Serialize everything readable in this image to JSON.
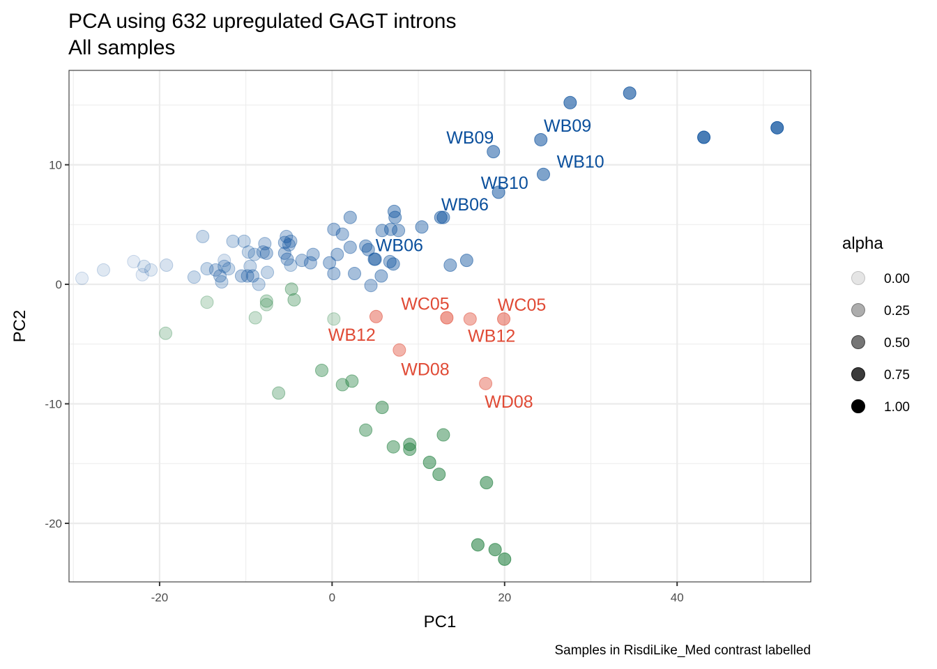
{
  "chart_data": {
    "type": "scatter",
    "title": "PCA using 632 upregulated GAGT introns",
    "subtitle": "All samples",
    "xlabel": "PC1",
    "ylabel": "PC2",
    "caption": "Samples in RisdiLike_Med contrast labelled",
    "xlim": [
      -30.5,
      55.5
    ],
    "ylim": [
      -24.9,
      17.9
    ],
    "x_ticks": [
      -20,
      0,
      20,
      40
    ],
    "y_ticks": [
      -20,
      -10,
      0,
      10
    ],
    "x_tick_labels": [
      "-20",
      "0",
      "20",
      "40"
    ],
    "y_tick_labels": [
      "-20",
      "-10",
      "0",
      "10"
    ],
    "grid": true,
    "legend": {
      "title": "alpha",
      "placement": "right",
      "entries": [
        {
          "label": "0.00",
          "alpha": 0.1
        },
        {
          "label": "0.25",
          "alpha": 0.32
        },
        {
          "label": "0.50",
          "alpha": 0.54
        },
        {
          "label": "0.75",
          "alpha": 0.77
        },
        {
          "label": "1.00",
          "alpha": 1.0
        }
      ]
    },
    "colors": {
      "blue": "#0a4f9c",
      "green": "#1e7d3c",
      "red": "#e04a35"
    },
    "series": [
      {
        "name": "blue",
        "points": [
          {
            "x": -29.0,
            "y": 0.5,
            "a": 0.12
          },
          {
            "x": -26.5,
            "y": 1.2,
            "a": 0.15
          },
          {
            "x": -23.0,
            "y": 1.9,
            "a": 0.12
          },
          {
            "x": -22.0,
            "y": 0.8,
            "a": 0.12
          },
          {
            "x": -21.8,
            "y": 1.5,
            "a": 0.18
          },
          {
            "x": -21.0,
            "y": 1.2,
            "a": 0.15
          },
          {
            "x": -19.2,
            "y": 1.6,
            "a": 0.2
          },
          {
            "x": -15.0,
            "y": 4.0,
            "a": 0.28
          },
          {
            "x": -16.0,
            "y": 0.6,
            "a": 0.28
          },
          {
            "x": -14.5,
            "y": 1.3,
            "a": 0.3
          },
          {
            "x": -13.5,
            "y": 1.2,
            "a": 0.35
          },
          {
            "x": -13.0,
            "y": 0.7,
            "a": 0.35
          },
          {
            "x": -12.8,
            "y": 0.2,
            "a": 0.3
          },
          {
            "x": -12.5,
            "y": 1.5,
            "a": 0.3
          },
          {
            "x": -12.5,
            "y": 2.0,
            "a": 0.2
          },
          {
            "x": -12.0,
            "y": 1.3,
            "a": 0.3
          },
          {
            "x": -11.5,
            "y": 3.6,
            "a": 0.3
          },
          {
            "x": -10.5,
            "y": 0.7,
            "a": 0.38
          },
          {
            "x": -10.2,
            "y": 3.6,
            "a": 0.3
          },
          {
            "x": -9.8,
            "y": 0.7,
            "a": 0.4
          },
          {
            "x": -9.7,
            "y": 2.7,
            "a": 0.3
          },
          {
            "x": -9.5,
            "y": 1.5,
            "a": 0.3
          },
          {
            "x": -9.2,
            "y": 0.7,
            "a": 0.38
          },
          {
            "x": -9.0,
            "y": 2.5,
            "a": 0.3
          },
          {
            "x": -8.5,
            "y": 0.0,
            "a": 0.3
          },
          {
            "x": -8.0,
            "y": 2.7,
            "a": 0.35
          },
          {
            "x": -7.8,
            "y": 3.4,
            "a": 0.35
          },
          {
            "x": -7.6,
            "y": 2.6,
            "a": 0.4
          },
          {
            "x": -7.5,
            "y": 1.0,
            "a": 0.3
          },
          {
            "x": -5.5,
            "y": 3.5,
            "a": 0.4
          },
          {
            "x": -5.5,
            "y": 2.6,
            "a": 0.42
          },
          {
            "x": -5.3,
            "y": 4.0,
            "a": 0.38
          },
          {
            "x": -5.2,
            "y": 2.1,
            "a": 0.4
          },
          {
            "x": -5.0,
            "y": 3.3,
            "a": 0.38
          },
          {
            "x": -4.8,
            "y": 1.6,
            "a": 0.3
          },
          {
            "x": -4.8,
            "y": 3.6,
            "a": 0.4
          },
          {
            "x": -3.5,
            "y": 2.0,
            "a": 0.4
          },
          {
            "x": -2.5,
            "y": 1.8,
            "a": 0.42
          },
          {
            "x": -2.2,
            "y": 2.5,
            "a": 0.42
          },
          {
            "x": -0.3,
            "y": 1.8,
            "a": 0.45
          },
          {
            "x": 0.2,
            "y": 4.6,
            "a": 0.45
          },
          {
            "x": 0.2,
            "y": 0.9,
            "a": 0.45
          },
          {
            "x": 0.6,
            "y": 2.5,
            "a": 0.45
          },
          {
            "x": 1.2,
            "y": 4.2,
            "a": 0.45
          },
          {
            "x": 2.1,
            "y": 5.6,
            "a": 0.5
          },
          {
            "x": 2.1,
            "y": 3.1,
            "a": 0.48
          },
          {
            "x": 2.6,
            "y": 0.9,
            "a": 0.48
          },
          {
            "x": 3.9,
            "y": 3.2,
            "a": 0.5
          },
          {
            "x": 4.2,
            "y": 2.9,
            "a": 0.5
          },
          {
            "x": 4.5,
            "y": -0.1,
            "a": 0.45
          },
          {
            "x": 4.9,
            "y": 2.1,
            "a": 0.55
          },
          {
            "x": 5.0,
            "y": 2.1,
            "a": 0.5
          },
          {
            "x": 5.7,
            "y": 0.7,
            "a": 0.5
          },
          {
            "x": 5.8,
            "y": 4.5,
            "a": 0.5
          },
          {
            "x": 6.7,
            "y": 1.9,
            "a": 0.5
          },
          {
            "x": 6.8,
            "y": 4.6,
            "a": 0.5
          },
          {
            "x": 7.1,
            "y": 1.7,
            "a": 0.55
          },
          {
            "x": 7.2,
            "y": 6.1,
            "a": 0.55
          },
          {
            "x": 7.3,
            "y": 5.6,
            "a": 0.55
          },
          {
            "x": 7.7,
            "y": 4.5,
            "a": 0.5
          },
          {
            "x": 10.4,
            "y": 4.8,
            "a": 0.55
          },
          {
            "x": 12.6,
            "y": 5.6,
            "a": 0.6
          },
          {
            "x": 12.9,
            "y": 5.6,
            "a": 0.6
          },
          {
            "x": 13.7,
            "y": 1.6,
            "a": 0.55
          },
          {
            "x": 15.6,
            "y": 2.0,
            "a": 0.6
          },
          {
            "x": 18.7,
            "y": 11.1,
            "a": 0.68
          },
          {
            "x": 19.3,
            "y": 7.7,
            "a": 0.68
          },
          {
            "x": 24.2,
            "y": 12.1,
            "a": 0.72
          },
          {
            "x": 24.5,
            "y": 9.2,
            "a": 0.7
          },
          {
            "x": 27.6,
            "y": 15.2,
            "a": 0.8
          },
          {
            "x": 34.5,
            "y": 16.0,
            "a": 0.82
          },
          {
            "x": 43.1,
            "y": 12.3,
            "a": 1.0
          },
          {
            "x": 51.6,
            "y": 13.1,
            "a": 1.0
          }
        ]
      },
      {
        "name": "green",
        "points": [
          {
            "x": -19.3,
            "y": -4.1,
            "a": 0.3
          },
          {
            "x": -14.5,
            "y": -1.5,
            "a": 0.28
          },
          {
            "x": -8.9,
            "y": -2.8,
            "a": 0.3
          },
          {
            "x": -7.6,
            "y": -1.4,
            "a": 0.35
          },
          {
            "x": -7.6,
            "y": -1.7,
            "a": 0.3
          },
          {
            "x": -6.2,
            "y": -9.1,
            "a": 0.4
          },
          {
            "x": -4.7,
            "y": -0.4,
            "a": 0.42
          },
          {
            "x": -4.4,
            "y": -1.3,
            "a": 0.42
          },
          {
            "x": -1.2,
            "y": -7.2,
            "a": 0.5
          },
          {
            "x": 0.2,
            "y": -2.9,
            "a": 0.28
          },
          {
            "x": 1.2,
            "y": -8.4,
            "a": 0.5
          },
          {
            "x": 2.3,
            "y": -8.1,
            "a": 0.52
          },
          {
            "x": 3.9,
            "y": -12.2,
            "a": 0.55
          },
          {
            "x": 5.8,
            "y": -10.3,
            "a": 0.6
          },
          {
            "x": 7.1,
            "y": -13.6,
            "a": 0.58
          },
          {
            "x": 9.0,
            "y": -13.4,
            "a": 0.62
          },
          {
            "x": 9.0,
            "y": -13.8,
            "a": 0.62
          },
          {
            "x": 11.3,
            "y": -14.9,
            "a": 0.68
          },
          {
            "x": 12.4,
            "y": -15.9,
            "a": 0.68
          },
          {
            "x": 12.9,
            "y": -12.6,
            "a": 0.62
          },
          {
            "x": 17.9,
            "y": -16.6,
            "a": 0.7
          },
          {
            "x": 16.9,
            "y": -21.8,
            "a": 0.75
          },
          {
            "x": 18.9,
            "y": -22.2,
            "a": 0.75
          },
          {
            "x": 20.0,
            "y": -23.0,
            "a": 0.78
          }
        ]
      },
      {
        "name": "red",
        "points": [
          {
            "x": 5.1,
            "y": -2.7,
            "a": 0.6
          },
          {
            "x": 13.3,
            "y": -2.8,
            "a": 0.7
          },
          {
            "x": 16.0,
            "y": -2.9,
            "a": 0.55
          },
          {
            "x": 19.9,
            "y": -2.9,
            "a": 0.65
          },
          {
            "x": 7.8,
            "y": -5.5,
            "a": 0.55
          },
          {
            "x": 17.8,
            "y": -8.3,
            "a": 0.55
          }
        ]
      }
    ],
    "annotations": [
      {
        "text": "WB09",
        "x": 16.0,
        "y": 12.3,
        "color": "blue"
      },
      {
        "text": "WB09",
        "x": 27.3,
        "y": 13.3,
        "color": "blue"
      },
      {
        "text": "WB10",
        "x": 20.0,
        "y": 8.5,
        "color": "blue"
      },
      {
        "text": "WB10",
        "x": 28.8,
        "y": 10.3,
        "color": "blue"
      },
      {
        "text": "WB06",
        "x": 15.4,
        "y": 6.7,
        "color": "blue"
      },
      {
        "text": "WB06",
        "x": 7.8,
        "y": 3.3,
        "color": "blue"
      },
      {
        "text": "WC05",
        "x": 10.8,
        "y": -1.6,
        "color": "red"
      },
      {
        "text": "WC05",
        "x": 22.0,
        "y": -1.7,
        "color": "red"
      },
      {
        "text": "WB12",
        "x": 2.3,
        "y": -4.2,
        "color": "red"
      },
      {
        "text": "WB12",
        "x": 18.5,
        "y": -4.3,
        "color": "red"
      },
      {
        "text": "WD08",
        "x": 10.8,
        "y": -7.1,
        "color": "red"
      },
      {
        "text": "WD08",
        "x": 20.5,
        "y": -9.8,
        "color": "red"
      }
    ]
  }
}
